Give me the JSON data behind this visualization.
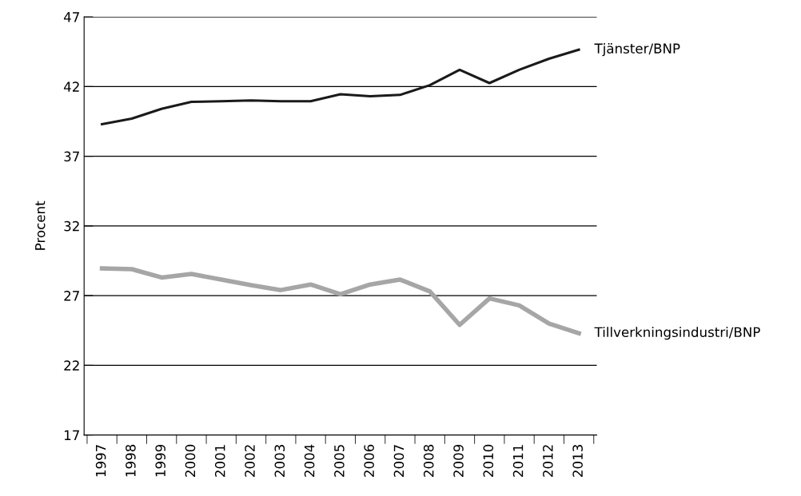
{
  "chart_data": {
    "type": "line",
    "ylabel": "Procent",
    "categories": [
      "1997",
      "1998",
      "1999",
      "2000",
      "2001",
      "2002",
      "2003",
      "2004",
      "2005",
      "2006",
      "2007",
      "2008",
      "2009",
      "2010",
      "2011",
      "2012",
      "2013"
    ],
    "series": [
      {
        "name": "Tjänster/BNP",
        "color": "#1a1a1a",
        "values": [
          39.3,
          39.7,
          40.4,
          40.9,
          40.95,
          41.0,
          40.95,
          40.95,
          41.45,
          41.3,
          41.4,
          42.1,
          43.2,
          42.25,
          43.2,
          44.0,
          44.65
        ]
      },
      {
        "name": "Tillverkningsindustri/BNP",
        "color": "#a6a6a6",
        "values": [
          28.95,
          28.9,
          28.3,
          28.55,
          28.15,
          27.75,
          27.4,
          27.8,
          27.1,
          27.8,
          28.15,
          27.3,
          24.9,
          26.8,
          26.3,
          25.0,
          24.3
        ]
      }
    ],
    "ylim": [
      17,
      47
    ],
    "yticks": [
      17,
      22,
      27,
      32,
      37,
      42,
      47
    ],
    "grid": "y",
    "legend": false,
    "marker": "none",
    "line_style": "solid"
  }
}
